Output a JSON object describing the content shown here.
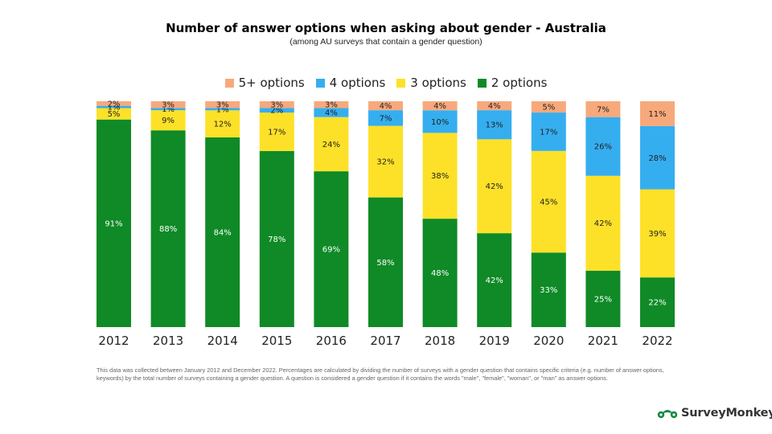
{
  "chart_data": {
    "type": "bar",
    "stacked": true,
    "title": "Number of answer options when asking about gender - Australia",
    "subtitle": "(among AU surveys that contain a gender question)",
    "categories": [
      "2012",
      "2013",
      "2014",
      "2015",
      "2016",
      "2017",
      "2018",
      "2019",
      "2020",
      "2021",
      "2022"
    ],
    "ylim": [
      0,
      100
    ],
    "grid": false,
    "legend_position": "top-center",
    "series": [
      {
        "name": "2 options",
        "color": "#0f8a26",
        "values": [
          91,
          88,
          84,
          78,
          69,
          58,
          48,
          42,
          33,
          25,
          22
        ],
        "labels": [
          "91%",
          "88%",
          "84%",
          "78%",
          "69%",
          "58%",
          "48%",
          "42%",
          "33%",
          "25%",
          "22%"
        ]
      },
      {
        "name": "3 options",
        "color": "#fde128",
        "values": [
          5,
          9,
          12,
          17,
          24,
          32,
          38,
          42,
          45,
          42,
          39
        ],
        "labels": [
          "5%",
          "9%",
          "12%",
          "17%",
          "24%",
          "32%",
          "38%",
          "42%",
          "45%",
          "42%",
          "39%"
        ]
      },
      {
        "name": "4 options",
        "color": "#35aef0",
        "values": [
          1,
          1,
          1,
          2,
          4,
          7,
          10,
          13,
          17,
          26,
          28
        ],
        "labels": [
          "1%",
          "1%",
          "1%",
          "2%",
          "4%",
          "7%",
          "10%",
          "13%",
          "17%",
          "26%",
          "28%"
        ]
      },
      {
        "name": "5+ options",
        "color": "#f7a97c",
        "values": [
          2,
          3,
          3,
          3,
          3,
          4,
          4,
          4,
          5,
          7,
          11
        ],
        "labels": [
          "2%",
          "3%",
          "3%",
          "3%",
          "3%",
          "4%",
          "4%",
          "4%",
          "5%",
          "7%",
          "11%"
        ]
      }
    ],
    "legend_order": [
      "5+ options",
      "4 options",
      "3 options",
      "2 options"
    ]
  },
  "footnote": "This data was collected between January 2012 and December 2022. Percentages are calculated by dividing the number of surveys with a gender question that contains specific criteria (e.g. number of answer options, keywords) by the total number of surveys containing a gender question. A question is considered a gender question if it contains the words \"male\", \"female\", \"woman\", or \"man\" as answer options.",
  "logo": {
    "text": "SurveyMonkey",
    "mark": "®",
    "icon": "surveymonkey-logo-icon",
    "color": "#0b8a3e"
  }
}
